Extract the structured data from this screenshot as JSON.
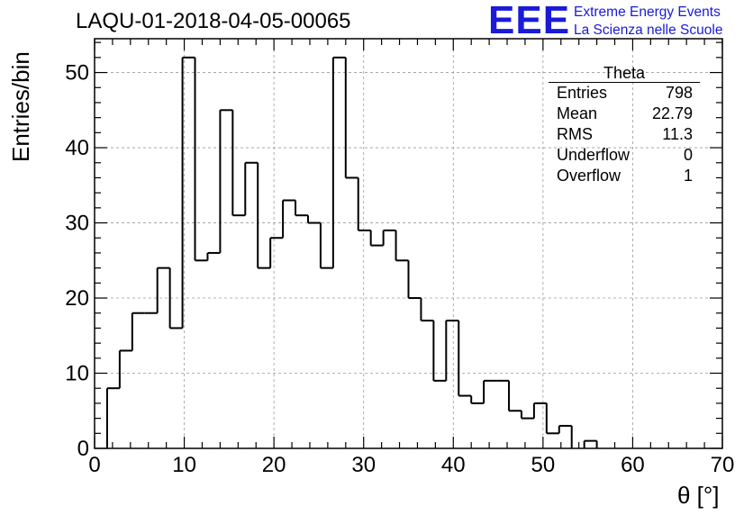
{
  "title": "LAQU-01-2018-04-05-00065",
  "logo": {
    "mark": "EEE",
    "line1": "Extreme Energy Events",
    "line2": "La Scienza nelle Scuole",
    "color": "#1a1ad8"
  },
  "axes": {
    "xlabel": "θ [°]",
    "ylabel": "Entries/bin"
  },
  "stats": {
    "title": "Theta",
    "rows": [
      {
        "label": "Entries",
        "value": "798"
      },
      {
        "label": "Mean",
        "value": "22.79"
      },
      {
        "label": "RMS",
        "value": "11.3"
      },
      {
        "label": "Underflow",
        "value": "0"
      },
      {
        "label": "Overflow",
        "value": "1"
      }
    ]
  },
  "chart_data": {
    "type": "bar",
    "histogram": true,
    "bin_width": 1.4,
    "x_start": 0,
    "values": [
      0,
      8,
      13,
      18,
      18,
      24,
      16,
      52,
      25,
      26,
      45,
      31,
      38,
      24,
      28,
      33,
      31,
      30,
      24,
      52,
      36,
      29,
      27,
      29,
      25,
      20,
      17,
      9,
      17,
      7,
      6,
      9,
      9,
      5,
      4,
      6,
      2,
      3,
      0,
      1,
      0,
      0,
      0,
      0,
      0,
      0,
      0,
      0,
      0,
      0
    ],
    "xlim": [
      0,
      70
    ],
    "ylim": [
      0,
      54.5
    ],
    "xticks": [
      0,
      10,
      20,
      30,
      40,
      50,
      60,
      70
    ],
    "yticks": [
      0,
      10,
      20,
      30,
      40,
      50
    ],
    "grid": true,
    "legend": "top-right stats box"
  }
}
